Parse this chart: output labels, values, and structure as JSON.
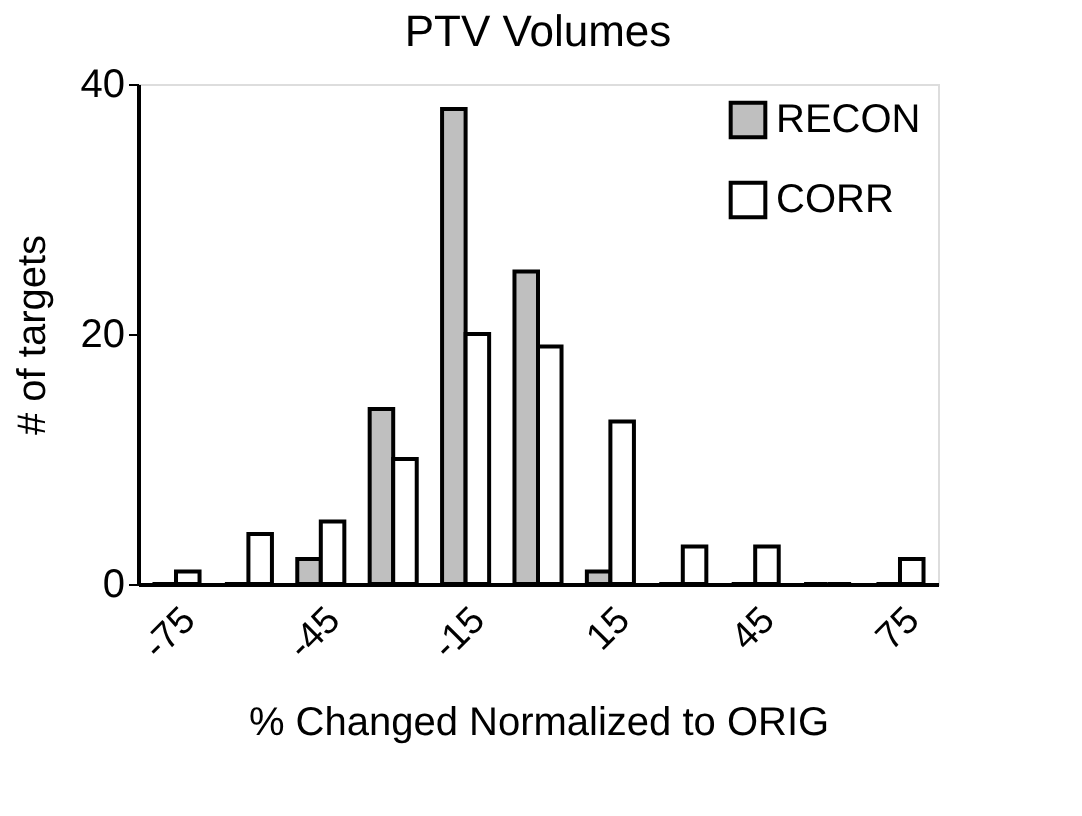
{
  "chart_data": {
    "type": "bar",
    "title": "PTV Volumes",
    "xlabel": "% Changed Normalized to ORIG",
    "ylabel": "# of targets",
    "categories": [
      "-75",
      null,
      "-45",
      null,
      "-15",
      null,
      "15",
      null,
      "45",
      null,
      "75"
    ],
    "series": [
      {
        "name": "RECON",
        "color": "#bfbfbf",
        "values": [
          0,
          0,
          2,
          14,
          38,
          25,
          1,
          0,
          0,
          0,
          0
        ]
      },
      {
        "name": "CORR",
        "color": "#ffffff",
        "values": [
          1,
          4,
          5,
          10,
          20,
          19,
          13,
          3,
          3,
          0,
          2
        ]
      }
    ],
    "ylim": [
      0,
      40
    ],
    "yticks": [
      0,
      20,
      40
    ],
    "grid": false,
    "legend": "top right"
  }
}
